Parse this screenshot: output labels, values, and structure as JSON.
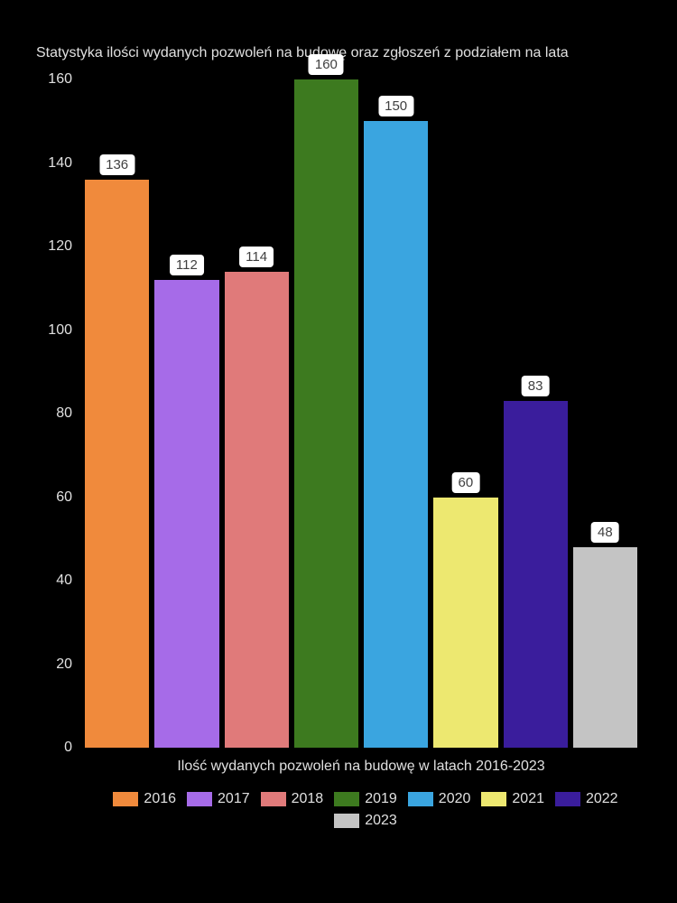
{
  "chart": {
    "type": "bar",
    "title": "Statystyka ilości wydanych pozwoleń na budowę oraz zgłoszeń z podziałem na lata",
    "xlabel": "Ilość wydanych pozwoleń na budowę w latach 2016-2023",
    "xlabel_fontsize": 16,
    "title_fontsize": 16,
    "background_color": "#000000",
    "text_color": "#e0e0e0",
    "label_bg": "#ffffff",
    "label_text_color": "#404040",
    "ylim": [
      0,
      160
    ],
    "yticks": [
      0,
      20,
      40,
      60,
      80,
      100,
      120,
      140,
      160
    ],
    "series": [
      {
        "year": "2016",
        "value": 136,
        "color": "#f08a3c"
      },
      {
        "year": "2017",
        "value": 112,
        "color": "#a66be8"
      },
      {
        "year": "2018",
        "value": 114,
        "color": "#e07a7a"
      },
      {
        "year": "2019",
        "value": 160,
        "color": "#3d7a1f"
      },
      {
        "year": "2020",
        "value": 150,
        "color": "#3aa5e0"
      },
      {
        "year": "2021",
        "value": 60,
        "color": "#ede870"
      },
      {
        "year": "2022",
        "value": 83,
        "color": "#3a1d9c"
      },
      {
        "year": "2023",
        "value": 48,
        "color": "#c4c4c4"
      }
    ],
    "bar_gap": 6
  }
}
